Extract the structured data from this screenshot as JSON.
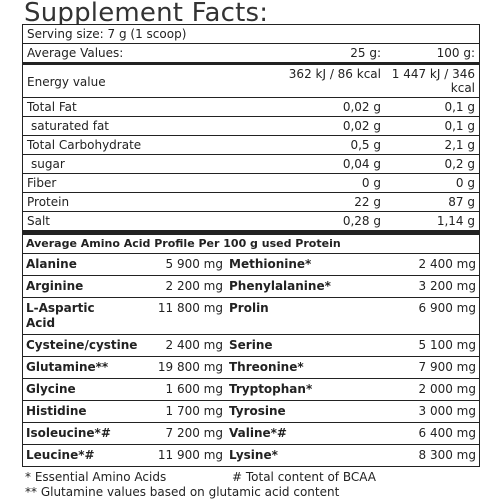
{
  "title": "Supplement Facts:",
  "serving_size": "Serving size: 7 g (1 scoop)",
  "header": {
    "label": "Average Values:",
    "col1": "25 g:",
    "col2": "100 g:"
  },
  "nutrients": [
    {
      "name": "Energy value",
      "v1": "362 kJ / 86 kcal",
      "v2": "1 447 kJ / 346 kcal"
    },
    {
      "name": "Total Fat",
      "v1": "0,02 g",
      "v2": "0,1 g"
    },
    {
      "name": "saturated fat",
      "v1": "0,02 g",
      "v2": "0,1 g"
    },
    {
      "name": "Total Carbohydrate",
      "v1": "0,5 g",
      "v2": "2,1 g"
    },
    {
      "name": "sugar",
      "v1": "0,04 g",
      "v2": "0,2 g"
    },
    {
      "name": "Fiber",
      "v1": "0 g",
      "v2": "0 g"
    },
    {
      "name": "Protein",
      "v1": "22 g",
      "v2": "87 g"
    },
    {
      "name": "Salt",
      "v1": "0,28 g",
      "v2": "1,14 g"
    }
  ],
  "amino_title": "Average Amino Acid Profile Per 100 g used Protein",
  "amino_rows": [
    {
      "a_name": "Alanine",
      "a_val": "5 900 mg",
      "b_name": "Methionine*",
      "b_val": "2 400 mg"
    },
    {
      "a_name": "Arginine",
      "a_val": "2 200 mg",
      "b_name": "Phenylalanine*",
      "b_val": "3 200 mg"
    },
    {
      "a_name": "L-Aspartic Acid",
      "a_val": "11 800 mg",
      "b_name": "Prolin",
      "b_val": "6 900 mg"
    },
    {
      "a_name": "Cysteine/cystine",
      "a_val": "2 400 mg",
      "b_name": "Serine",
      "b_val": "5 100 mg"
    },
    {
      "a_name": "Glutamine**",
      "a_val": "19 800 mg",
      "b_name": "Threonine*",
      "b_val": "7 900 mg"
    },
    {
      "a_name": "Glycine",
      "a_val": "1 600 mg",
      "b_name": "Tryptophan*",
      "b_val": "2 000 mg"
    },
    {
      "a_name": "Histidine",
      "a_val": "1 700 mg",
      "b_name": "Tyrosine",
      "b_val": "3 000 mg"
    },
    {
      "a_name": "Isoleucine*#",
      "a_val": "7 200 mg",
      "b_name": "Valine*#",
      "b_val": "6 400 mg"
    },
    {
      "a_name": "Leucine*#",
      "a_val": "11 900 mg",
      "b_name": "Lysine*",
      "b_val": "8 300 mg"
    }
  ],
  "notes": {
    "essential": "* Essential Amino Acids",
    "bcaa": "# Total content of BCAA",
    "glutamine": "** Glutamine values based on glutamic acid content"
  }
}
